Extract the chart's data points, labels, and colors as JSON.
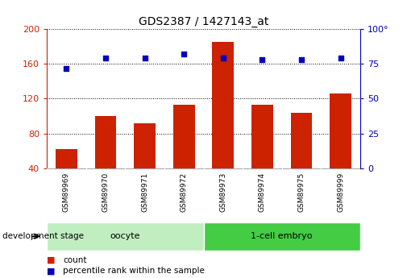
{
  "title": "GDS2387 / 1427143_at",
  "samples": [
    "GSM89969",
    "GSM89970",
    "GSM89971",
    "GSM89972",
    "GSM89973",
    "GSM89974",
    "GSM89975",
    "GSM89999"
  ],
  "counts": [
    62,
    100,
    92,
    113,
    185,
    113,
    104,
    126
  ],
  "percentile_ranks": [
    72,
    79,
    79,
    82,
    79,
    78,
    78,
    79
  ],
  "groups": [
    {
      "label": "oocyte",
      "indices": [
        0,
        1,
        2,
        3
      ],
      "color": "#c0eec0"
    },
    {
      "label": "1-cell embryo",
      "indices": [
        4,
        5,
        6,
        7
      ],
      "color": "#44cc44"
    }
  ],
  "bar_color": "#cc2200",
  "dot_color": "#0000bb",
  "left_axis_color": "#cc2200",
  "right_axis_color": "#0000bb",
  "ylim_left": [
    40,
    200
  ],
  "ylim_right": [
    0,
    100
  ],
  "yticks_left": [
    40,
    80,
    120,
    160,
    200
  ],
  "yticks_right": [
    0,
    25,
    50,
    75,
    100
  ],
  "background_color": "#ffffff",
  "xlabel_area_color": "#d8d8d8",
  "group_label": "development stage",
  "legend_count_color": "#cc2200",
  "legend_dot_color": "#0000bb"
}
